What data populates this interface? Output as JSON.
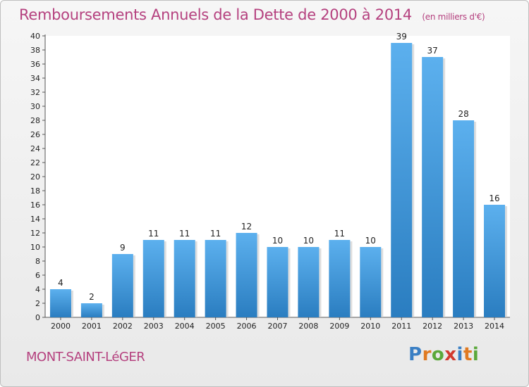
{
  "title": {
    "main": "Remboursements Annuels de la Dette de 2000 à 2014",
    "unit": "(en milliers d'€)"
  },
  "footer": {
    "city": "MONT-SAINT-LéGER",
    "logo": [
      "P",
      "r",
      "o",
      "x",
      "i",
      "t",
      "i"
    ],
    "logo_colors": [
      "#3a7fc4",
      "#e07a22",
      "#5aa83a",
      "#d23a2e",
      "#3a7fc4",
      "#e07a22",
      "#5aa83a"
    ]
  },
  "colors": {
    "bar_top": "#5cb0ee",
    "bar_bottom": "#2a7dc0",
    "title": "#b5417f"
  },
  "chart_data": {
    "type": "bar",
    "title": "Remboursements Annuels de la Dette de 2000 à 2014",
    "subtitle": "(en milliers d'€)",
    "xlabel": "",
    "ylabel": "",
    "categories": [
      "2000",
      "2001",
      "2002",
      "2003",
      "2004",
      "2005",
      "2006",
      "2007",
      "2008",
      "2009",
      "2010",
      "2011",
      "2012",
      "2013",
      "2014"
    ],
    "values": [
      4,
      2,
      9,
      11,
      11,
      11,
      12,
      10,
      10,
      11,
      10,
      39,
      37,
      28,
      16
    ],
    "ylim": [
      0,
      40
    ],
    "yticks": [
      0,
      2,
      4,
      6,
      8,
      10,
      12,
      14,
      16,
      18,
      20,
      22,
      24,
      26,
      28,
      30,
      32,
      34,
      36,
      38,
      40
    ],
    "grid": false,
    "legend": "none"
  }
}
